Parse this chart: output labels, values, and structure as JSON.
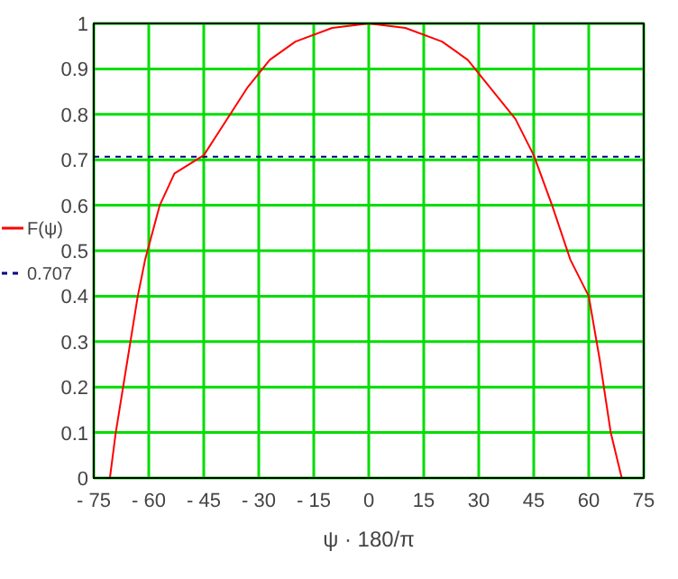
{
  "chart_data": {
    "type": "line",
    "xlabel": "ψ · 180/π",
    "legend": "left",
    "grid": true,
    "xlim": [
      -75,
      75
    ],
    "ylim": [
      0,
      1
    ],
    "xticks": [
      {
        "value": -75,
        "label": "- 75"
      },
      {
        "value": -60,
        "label": "- 60"
      },
      {
        "value": -45,
        "label": "- 45"
      },
      {
        "value": -30,
        "label": "- 30"
      },
      {
        "value": -15,
        "label": "- 15"
      },
      0,
      15,
      30,
      45,
      60,
      75
    ],
    "yticks": [
      0,
      0.1,
      0.2,
      0.3,
      0.4,
      0.5,
      0.6,
      0.7,
      0.8,
      0.9,
      1
    ],
    "series": [
      {
        "name": "F(ψ)",
        "color": "#ff0000",
        "line_style": "solid",
        "x": [
          -70.6,
          -69,
          -66,
          -63,
          -61,
          -57,
          -53,
          -45,
          -41,
          -37,
          -33,
          -27,
          -20,
          -10,
          0,
          10,
          20,
          27,
          33,
          40,
          45,
          50,
          55,
          60,
          63,
          66,
          69
        ],
        "values": [
          0,
          0.1,
          0.25,
          0.4,
          0.48,
          0.6,
          0.67,
          0.71,
          0.76,
          0.81,
          0.86,
          0.92,
          0.96,
          0.99,
          1,
          0.99,
          0.96,
          0.92,
          0.86,
          0.79,
          0.71,
          0.6,
          0.48,
          0.4,
          0.26,
          0.1,
          0
        ]
      }
    ],
    "ref_lines": [
      {
        "axis": "y",
        "value": 0.707,
        "label": "0.707",
        "color": "#000080",
        "line_style": "dashed"
      }
    ]
  }
}
